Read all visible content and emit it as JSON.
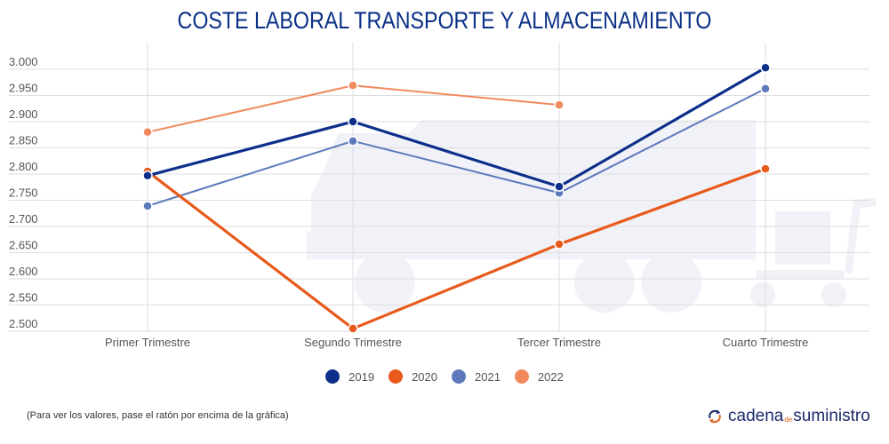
{
  "title": "COSTE LABORAL TRANSPORTE Y ALMACENAMIENTO",
  "note": "(Para ver los valores, pase el ratón por encima de la gráfica)",
  "brand": {
    "part1": "cadena",
    "part2": "de",
    "part3": "suministro",
    "icon": "refresh-arrows-icon"
  },
  "colors": {
    "2019": "#0d2f8a",
    "2020": "#e85a1b",
    "2021": "#5b79bb",
    "2022": "#f08a5d",
    "title": "#0a2f86"
  },
  "chart_data": {
    "type": "line",
    "title": "COSTE LABORAL TRANSPORTE Y ALMACENAMIENTO",
    "categories": [
      "Primer Trimestre",
      "Segundo Trimestre",
      "Tercer Trimestre",
      "Cuarto Trimestre"
    ],
    "ylim": [
      2500,
      3000
    ],
    "yticks": [
      3000,
      2950,
      2900,
      2850,
      2800,
      2750,
      2700,
      2650,
      2600,
      2550,
      2500
    ],
    "ytick_labels": [
      "3.000",
      "2.950",
      "2.900",
      "2.850",
      "2.800",
      "2.750",
      "2.700",
      "2.650",
      "2.600",
      "2.550",
      "2.500"
    ],
    "grid": true,
    "legend_position": "bottom",
    "series": [
      {
        "name": "2019",
        "values": [
          2797,
          2900,
          2776,
          3003
        ]
      },
      {
        "name": "2020",
        "values": [
          2805,
          2505,
          2666,
          2810
        ]
      },
      {
        "name": "2021",
        "values": [
          2739,
          2863,
          2764,
          2963
        ]
      },
      {
        "name": "2022",
        "values": [
          2880,
          2969,
          2932,
          null
        ]
      }
    ]
  }
}
